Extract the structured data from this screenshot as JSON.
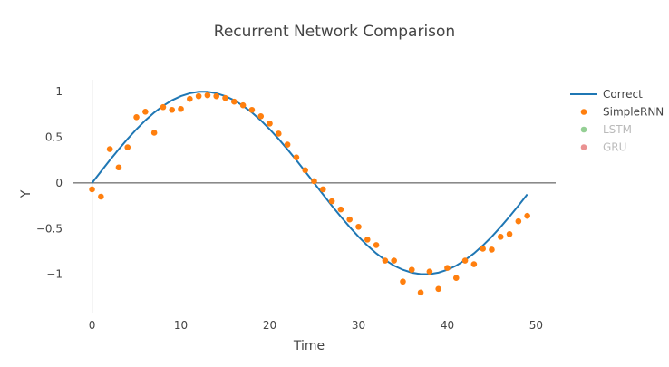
{
  "chart_data": {
    "type": "line",
    "title": "Recurrent Network Comparison",
    "xlabel": "Time",
    "ylabel": "Y",
    "xlim": [
      -2.2,
      52.2
    ],
    "ylim": [
      -1.42,
      1.13
    ],
    "xticks": [
      0,
      10,
      20,
      30,
      40,
      50
    ],
    "yticks": [
      1,
      0.5,
      0,
      -0.5,
      -1
    ],
    "ytick_labels": [
      "1",
      "0.5",
      "0",
      "−0.5",
      "−1"
    ],
    "grid": false,
    "legend_position": "right",
    "series": [
      {
        "name": "Correct",
        "mode": "line",
        "color": "#1f77b4",
        "x": [
          0,
          1,
          2,
          3,
          4,
          5,
          6,
          7,
          8,
          9,
          10,
          11,
          12,
          13,
          14,
          15,
          16,
          17,
          18,
          19,
          20,
          21,
          22,
          23,
          24,
          25,
          26,
          27,
          28,
          29,
          30,
          31,
          32,
          33,
          34,
          35,
          36,
          37,
          38,
          39,
          40,
          41,
          42,
          43,
          44,
          45,
          46,
          47,
          48,
          49
        ],
        "y": [
          0,
          0.125,
          0.249,
          0.368,
          0.482,
          0.588,
          0.685,
          0.771,
          0.844,
          0.905,
          0.951,
          0.982,
          0.998,
          0.998,
          0.982,
          0.951,
          0.905,
          0.844,
          0.771,
          0.685,
          0.588,
          0.482,
          0.368,
          0.249,
          0.125,
          0,
          -0.125,
          -0.249,
          -0.368,
          -0.482,
          -0.588,
          -0.685,
          -0.771,
          -0.844,
          -0.905,
          -0.951,
          -0.982,
          -0.998,
          -0.998,
          -0.982,
          -0.951,
          -0.905,
          -0.844,
          -0.771,
          -0.685,
          -0.588,
          -0.482,
          -0.368,
          -0.249,
          -0.125
        ]
      },
      {
        "name": "SimpleRNN",
        "mode": "markers",
        "color": "#ff7f0e",
        "x": [
          0,
          1,
          2,
          3,
          4,
          5,
          6,
          7,
          8,
          9,
          10,
          11,
          12,
          13,
          14,
          15,
          16,
          17,
          18,
          19,
          20,
          21,
          22,
          23,
          24,
          25,
          26,
          27,
          28,
          29,
          30,
          31,
          32,
          33,
          34,
          35,
          36,
          37,
          38,
          39,
          40,
          41,
          42,
          43,
          44,
          45,
          46,
          47,
          48,
          49
        ],
        "y": [
          -0.07,
          -0.15,
          0.37,
          0.17,
          0.39,
          0.72,
          0.78,
          0.55,
          0.83,
          0.8,
          0.81,
          0.92,
          0.95,
          0.96,
          0.95,
          0.93,
          0.89,
          0.85,
          0.8,
          0.73,
          0.65,
          0.54,
          0.42,
          0.28,
          0.14,
          0.02,
          -0.07,
          -0.2,
          -0.29,
          -0.4,
          -0.48,
          -0.62,
          -0.68,
          -0.85,
          -0.85,
          -1.08,
          -0.95,
          -1.2,
          -0.97,
          -1.16,
          -0.93,
          -1.04,
          -0.85,
          -0.89,
          -0.72,
          -0.73,
          -0.59,
          -0.56,
          -0.42,
          -0.36
        ]
      },
      {
        "name": "LSTM",
        "mode": "markers",
        "color": "#2ca02c",
        "legendonly": true,
        "x": [],
        "y": []
      },
      {
        "name": "GRU",
        "mode": "markers",
        "color": "#d62728",
        "legendonly": true,
        "x": [],
        "y": []
      }
    ]
  }
}
